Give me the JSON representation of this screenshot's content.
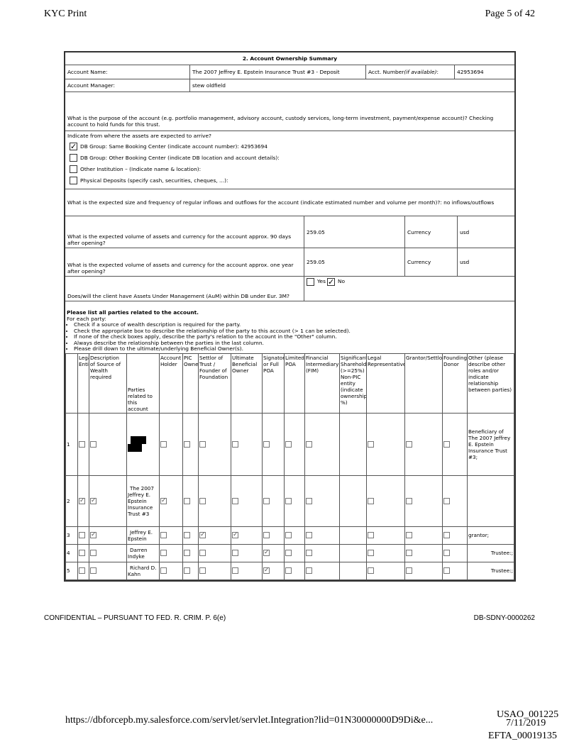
{
  "header": {
    "left": "KYC Print",
    "right": "Page 5 of 42"
  },
  "section_title": "2. Account Ownership Summary",
  "account_name_label": "Account Name:",
  "account_name": "The 2007 Jeffrey E. Epstein Insurance Trust #3 - Deposit",
  "acct_number_label": "Acct. Number ",
  "acct_number_note": "(if available)",
  "acct_number_colon": ":",
  "acct_number": "42953694",
  "account_manager_label": "Account Manager:",
  "account_manager": "stew oldfield",
  "purpose_question": "What is the purpose of the account (e.g. portfolio management, advisory account, custody services, long-term investment, payment/expense account)?  Checking account to hold funds for this trust.",
  "assets_question": "Indicate from where the assets are expected to arrive?",
  "asset_sources": [
    {
      "label": "DB Group: Same Booking Center (indicate account number):  42953694",
      "checked": true
    },
    {
      "label": "DB Group: Other Booking Center (indicate DB location and account details):",
      "checked": false
    },
    {
      "label": "Other Institution – (Indicate name & location):",
      "checked": false
    },
    {
      "label": "Physical Deposits (specify cash, securities, cheques, ...):",
      "checked": false
    }
  ],
  "inflows_question": "What is the expected size and frequency of regular inflows and outflows for the account (indicate estimated number and volume per month)?:  no inflows/outflows",
  "volume_90": {
    "question": "What is the expected volume of assets and currency for the account approx. 90 days after opening?",
    "value": "259.05",
    "currency_label": "Currency",
    "currency": "usd"
  },
  "volume_year": {
    "question": "What is the expected volume of assets and currency for the account approx. one year after opening?",
    "value": "259.05",
    "currency_label": "Currency",
    "currency": "usd"
  },
  "aum": {
    "question": "Does/will the client have Assets Under Management (AuM) within DB under Eur. 3M?",
    "yes": "Yes",
    "no": "No",
    "yes_checked": false,
    "no_checked": true
  },
  "parties": {
    "heading": "Please list all parties related to the account.",
    "intro": "For each party:",
    "bullets": [
      "Check if a source of wealth description is required for the party.",
      "Check the appropriate box to describe the relationship of the party to this account (> 1 can be selected).",
      "If none of the check boxes apply, describe the party's relation to the account in the \"Other\" column.",
      "Always describe the relationship between the parties in the last column.",
      "Please drill down to the ultimate/underlying Beneficial Owner(s)."
    ],
    "columns": [
      "",
      "Legal Entity",
      "Description of Source of Wealth required",
      "Parties related to this account",
      "Account Holder",
      "PIC Owner",
      "Settlor of Trust / Founder of Foundation",
      "Ultimate Beneficial Owner",
      "Signatory or Full POA",
      "Limited POA",
      "Financial Intermediary (FIM)",
      "Significant Shareholder (>=25%) Non-PIC entity (indicate ownership %)",
      "Legal Representative",
      "Grantor/Settlor",
      "Founding Donor",
      "Other (please describe other roles and/or indicate relationship between parties)"
    ],
    "rows": [
      {
        "num": "1",
        "name": "",
        "redacted": true,
        "checks": [
          false,
          false,
          false,
          false,
          false,
          false,
          false,
          false,
          false,
          null,
          false,
          false,
          false
        ],
        "other": "Beneficiary of The 2007 Jeffrey E. Epstein Insurance Trust #3;"
      },
      {
        "num": "2",
        "name": "The 2007 Jeffrey E. Epstein Insurance Trust #3",
        "redacted": false,
        "checks": [
          true,
          true,
          true,
          false,
          false,
          false,
          false,
          false,
          false,
          null,
          false,
          false,
          false
        ],
        "other": ""
      },
      {
        "num": "3",
        "name": "Jeffrey E. Epstein",
        "redacted": false,
        "checks": [
          false,
          true,
          false,
          false,
          true,
          true,
          false,
          false,
          false,
          null,
          false,
          false,
          false
        ],
        "other": "grantor;"
      },
      {
        "num": "4",
        "name": "Darren Indyke",
        "redacted": false,
        "checks": [
          false,
          false,
          false,
          false,
          false,
          false,
          true,
          false,
          false,
          null,
          false,
          false,
          false
        ],
        "other": "Trustee:;"
      },
      {
        "num": "5",
        "name": "Richard D. Kahn",
        "redacted": false,
        "checks": [
          false,
          false,
          false,
          false,
          false,
          false,
          true,
          false,
          false,
          null,
          false,
          false,
          false
        ],
        "other": "Trustee:;"
      }
    ]
  },
  "footer": {
    "confidential": "CONFIDENTIAL – PURSUANT TO FED. R. CRIM. P. 6(e)",
    "bates": "DB-SDNY-0000262",
    "url": "https://dbforcepb.my.salesforce.com/servlet/servlet.Integration?lid=01N30000000D9Di&e...",
    "date": "7/11/2019",
    "usao": "USAO_001225",
    "efta": "EFTA_00019135"
  }
}
